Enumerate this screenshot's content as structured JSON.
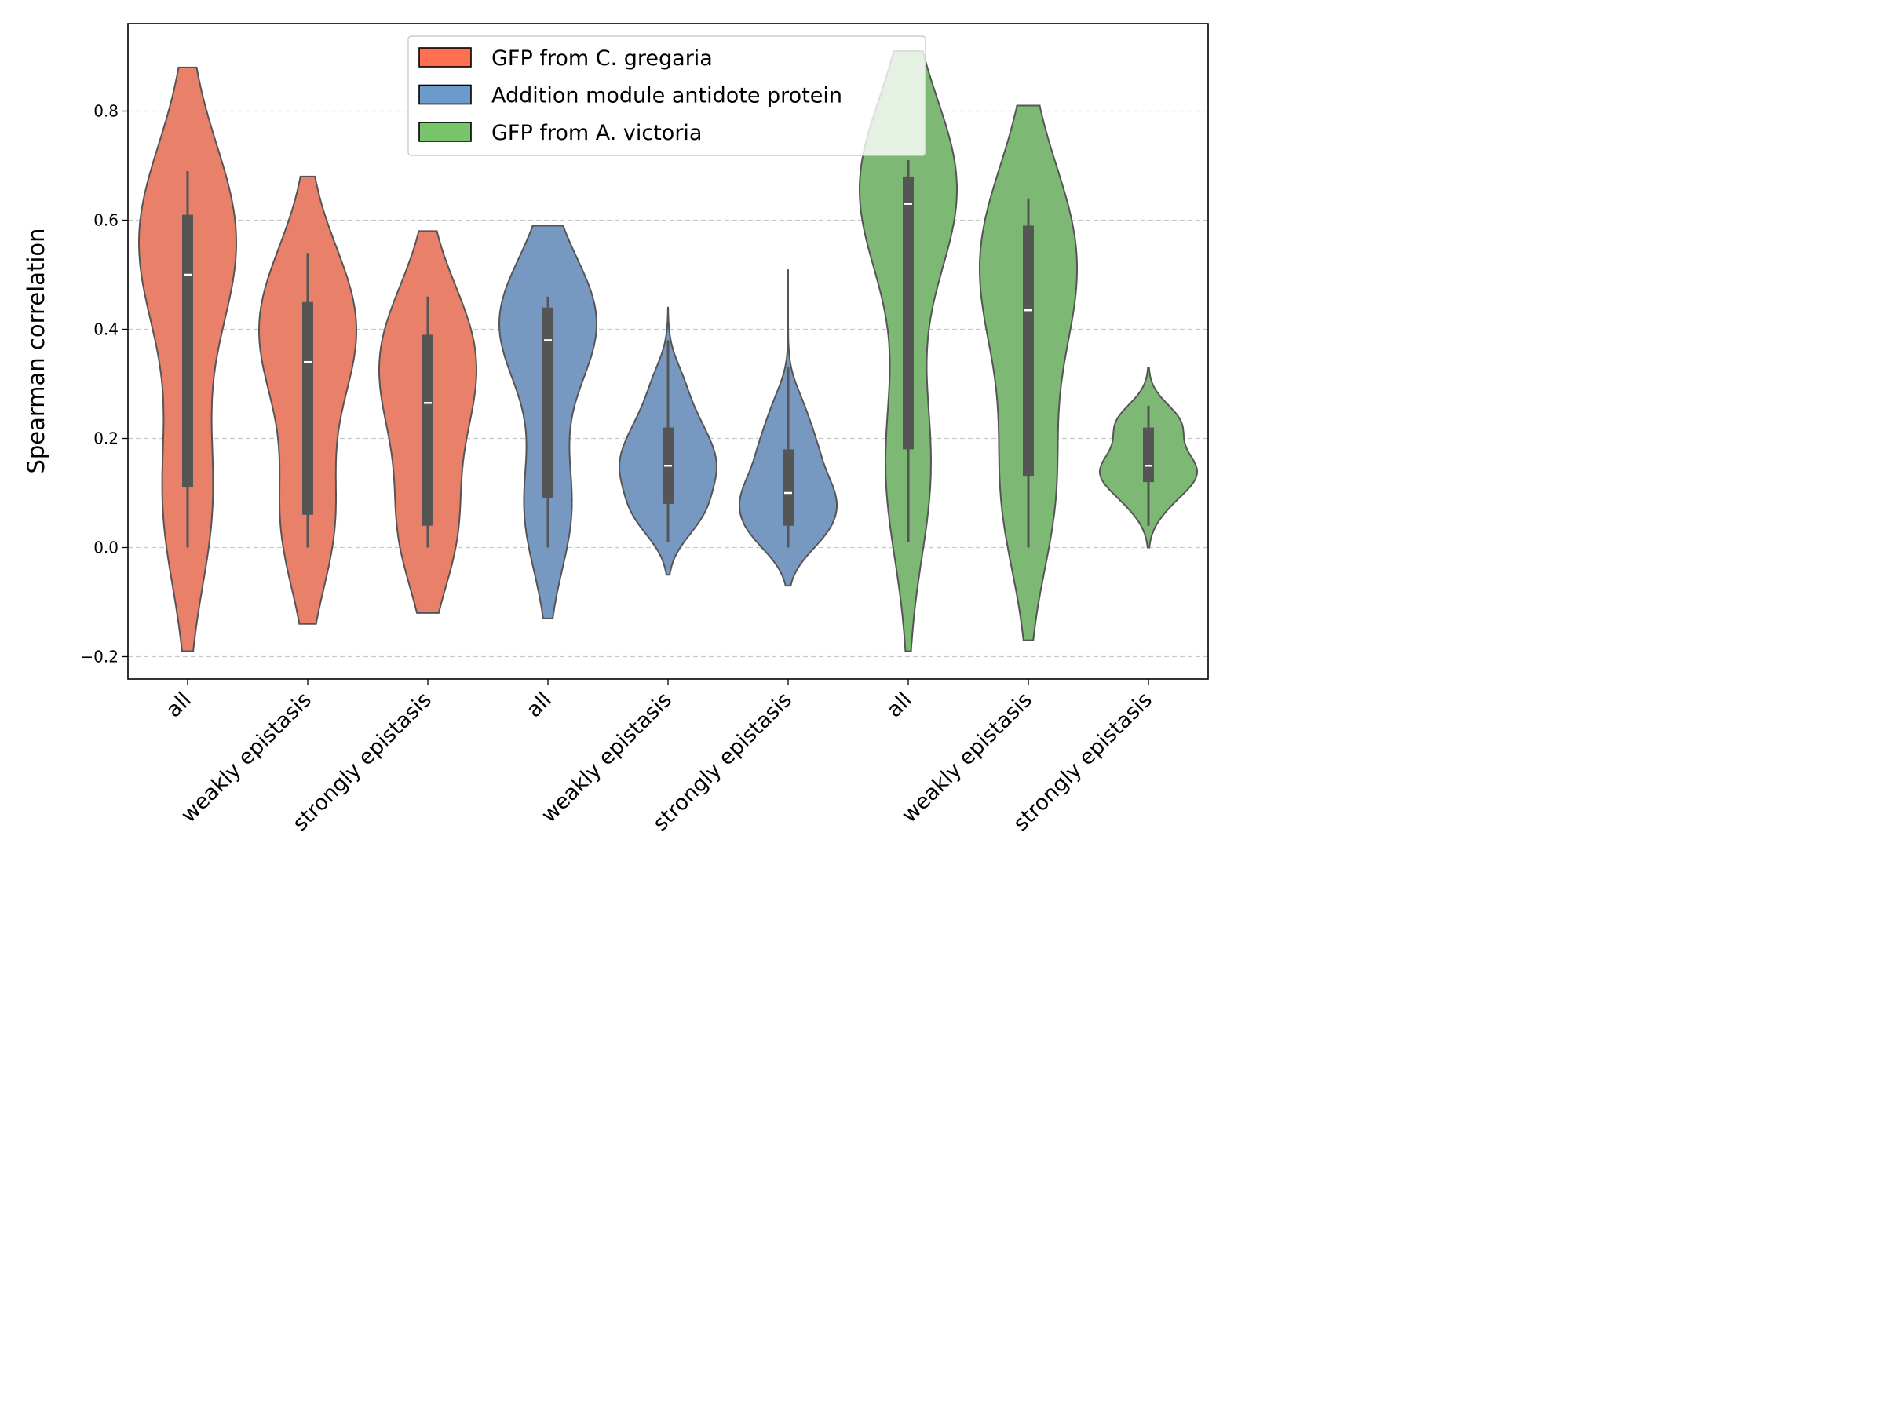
{
  "chart_data": {
    "type": "violin",
    "title": "",
    "xlabel": "",
    "ylabel": "Spearman correlation",
    "ylim": [
      -0.24,
      0.96
    ],
    "yticks": [
      "−0.2",
      "0.0",
      "0.2",
      "0.4",
      "0.6",
      "0.8"
    ],
    "ytick_values": [
      -0.2,
      0.0,
      0.2,
      0.4,
      0.6,
      0.8
    ],
    "grid": "horizontal dashed",
    "legend_position": "top-center",
    "categories": [
      "all",
      "weakly epistasis",
      "strongly epistasis",
      "all",
      "weakly epistasis",
      "strongly epistasis",
      "all",
      "weakly epistasis",
      "strongly epistasis"
    ],
    "series": [
      {
        "name": "GFP from C. gregaria",
        "color": "#E8806A",
        "legend_color": "#FF7050",
        "violins": [
          {
            "category": "all",
            "min": 0.0,
            "q1": 0.11,
            "median": 0.5,
            "q3": 0.61,
            "max": 0.69,
            "kde_low": -0.19,
            "kde_high": 0.88
          },
          {
            "category": "weakly epistasis",
            "min": 0.0,
            "q1": 0.06,
            "median": 0.34,
            "q3": 0.45,
            "max": 0.54,
            "kde_low": -0.14,
            "kde_high": 0.68
          },
          {
            "category": "strongly epistasis",
            "min": 0.0,
            "q1": 0.04,
            "median": 0.265,
            "q3": 0.39,
            "max": 0.46,
            "kde_low": -0.12,
            "kde_high": 0.58
          }
        ]
      },
      {
        "name": "Addition module antidote protein",
        "color": "#7799C1",
        "legend_color": "#6C9ACA",
        "violins": [
          {
            "category": "all",
            "min": 0.0,
            "q1": 0.09,
            "median": 0.38,
            "q3": 0.44,
            "max": 0.46,
            "kde_low": -0.13,
            "kde_high": 0.59
          },
          {
            "category": "weakly epistasis",
            "min": 0.01,
            "q1": 0.08,
            "median": 0.15,
            "q3": 0.22,
            "max": 0.38,
            "kde_low": -0.05,
            "kde_high": 0.44
          },
          {
            "category": "strongly epistasis",
            "min": 0.0,
            "q1": 0.04,
            "median": 0.1,
            "q3": 0.18,
            "max": 0.33,
            "kde_low": -0.07,
            "kde_high": 0.51
          }
        ]
      },
      {
        "name": "GFP from A. victoria",
        "color": "#7DB874",
        "legend_color": "#77C46A",
        "violins": [
          {
            "category": "all",
            "min": 0.01,
            "q1": 0.18,
            "median": 0.63,
            "q3": 0.68,
            "max": 0.71,
            "kde_low": -0.19,
            "kde_high": 0.91
          },
          {
            "category": "weakly epistasis",
            "min": 0.0,
            "q1": 0.13,
            "median": 0.435,
            "q3": 0.59,
            "max": 0.64,
            "kde_low": -0.17,
            "kde_high": 0.81
          },
          {
            "category": "strongly epistasis",
            "min": 0.04,
            "q1": 0.12,
            "median": 0.15,
            "q3": 0.22,
            "max": 0.26,
            "kde_low": 0.0,
            "kde_high": 0.33
          }
        ]
      }
    ]
  }
}
